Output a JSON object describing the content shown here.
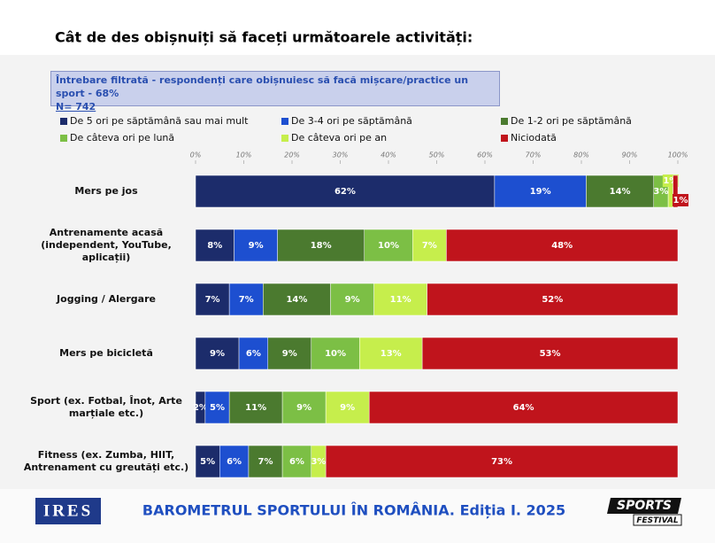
{
  "chart_data": {
    "type": "stacked_bar_horizontal",
    "title": "Cât de des obișnuiți să faceți următoarele activități:",
    "note": [
      "Întrebare filtrată - respondenți care obișnuiesc să facă mișcare/practice un sport - 68%",
      "N= 742"
    ],
    "footer": "BAROMETRUL SPORTULUI ÎN ROMÂNIA. Ediția I. 2025",
    "logos": [
      "IRES",
      "SPORTS",
      "FESTIVAL"
    ],
    "categories": [
      "Mers pe jos",
      "Antrenamente acasă\n(independent, YouTube,\naplicații)",
      "Jogging / Alergare",
      "Mers pe bicicletă",
      "Sport (ex. Fotbal, Înot,  Arte\nmarțiale etc.)",
      "Fitness (ex. Zumba, HIIT,\nAntrenament cu greutăți etc.)"
    ],
    "series": [
      {
        "name": "De 5 ori pe săptămână sau mai mult",
        "color": "#1c2c6b",
        "values": [
          62,
          8,
          7,
          9,
          2,
          5
        ],
        "value_labels": [
          "62%",
          "8%",
          "7%",
          "9%",
          "2%",
          "5%"
        ]
      },
      {
        "name": "De 3-4 ori pe săptămână",
        "color": "#1d4fd0",
        "values": [
          19,
          9,
          7,
          6,
          5,
          6
        ],
        "value_labels": [
          "19%",
          "9%",
          "7%",
          "6%",
          "5%",
          "6%"
        ]
      },
      {
        "name": "De 1-2 ori pe săptămână",
        "color": "#4b7a2f",
        "values": [
          14,
          18,
          14,
          9,
          11,
          7
        ],
        "value_labels": [
          "14%",
          "18%",
          "14%",
          "9%",
          "11%",
          "7%"
        ]
      },
      {
        "name": "De câteva ori pe lună",
        "color": "#7cbf45",
        "values": [
          3,
          10,
          9,
          10,
          9,
          6
        ],
        "value_labels": [
          "3%",
          "10%",
          "9%",
          "10%",
          "9%",
          "6%"
        ]
      },
      {
        "name": "De câteva ori pe an",
        "color": "#c6ee4c",
        "values": [
          1,
          7,
          11,
          13,
          9,
          3
        ],
        "value_labels": [
          "1%",
          "7%",
          "11%",
          "13%",
          "9%",
          "3%"
        ]
      },
      {
        "name": "Niciodată",
        "color": "#c0141c",
        "values": [
          1,
          48,
          52,
          53,
          64,
          73
        ],
        "value_labels": [
          "1%",
          "48%",
          "52%",
          "53%",
          "64%",
          "73%"
        ]
      }
    ],
    "xlim": [
      0,
      100
    ],
    "xticks": [
      {
        "value": 0,
        "label": "0%"
      },
      {
        "value": 10,
        "label": "10%"
      },
      {
        "value": 20,
        "label": "20%"
      },
      {
        "value": 30,
        "label": "30%"
      },
      {
        "value": 40,
        "label": "40%"
      },
      {
        "value": 50,
        "label": "50%"
      },
      {
        "value": 60,
        "label": "60%"
      },
      {
        "value": 70,
        "label": "70%"
      },
      {
        "value": 80,
        "label": "80%"
      },
      {
        "value": 90,
        "label": "90%"
      },
      {
        "value": 100,
        "label": "100%"
      }
    ]
  }
}
